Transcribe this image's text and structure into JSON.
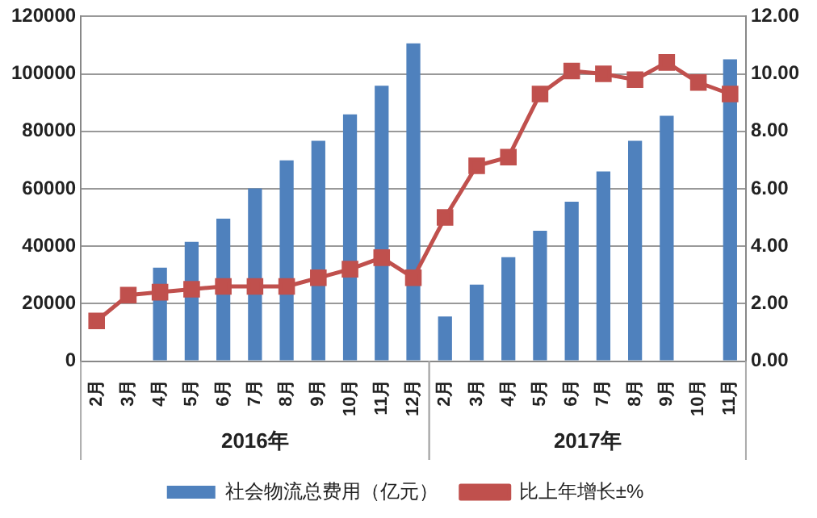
{
  "chart_data": {
    "type": "bar",
    "categories": [
      "2月",
      "3月",
      "4月",
      "5月",
      "6月",
      "7月",
      "8月",
      "9月",
      "10月",
      "11月",
      "12月",
      "2月",
      "3月",
      "4月",
      "5月",
      "6月",
      "7月",
      "8月",
      "9月",
      "10月",
      "11月"
    ],
    "series": [
      {
        "name": "社会物流总费用（亿元）",
        "color": "#4f81bd",
        "values": [
          null,
          null,
          32500,
          41500,
          49600,
          60100,
          69900,
          76700,
          85900,
          95900,
          110600,
          15500,
          26600,
          36200,
          45400,
          55500,
          66000,
          76700,
          85400,
          null,
          105100
        ]
      },
      {
        "name": "比上年增长±%",
        "type": "line",
        "axis": "y2",
        "color": "#c0504d",
        "marker": "square",
        "values": [
          1.4,
          2.3,
          2.4,
          2.5,
          2.6,
          2.6,
          2.6,
          2.9,
          3.2,
          3.6,
          2.9,
          5.0,
          6.8,
          7.1,
          9.3,
          10.1,
          10.0,
          9.8,
          10.4,
          9.7,
          9.3
        ]
      }
    ],
    "annotations": [
      "2016年",
      "2017年"
    ],
    "ylim": [
      0,
      120000
    ],
    "yticks": [
      0,
      20000,
      40000,
      60000,
      80000,
      100000,
      120000
    ],
    "y2lim": [
      0,
      12
    ],
    "y2ticks": [
      {
        "value": 0,
        "label": "0.00"
      },
      {
        "value": 2,
        "label": "2.00"
      },
      {
        "value": 4,
        "label": "4.00"
      },
      {
        "value": 6,
        "label": "6.00"
      },
      {
        "value": 8,
        "label": "8.00"
      },
      {
        "value": 10,
        "label": "10.00"
      },
      {
        "value": 12,
        "label": "12.00"
      }
    ],
    "grid": "y",
    "legend": "bottom"
  }
}
